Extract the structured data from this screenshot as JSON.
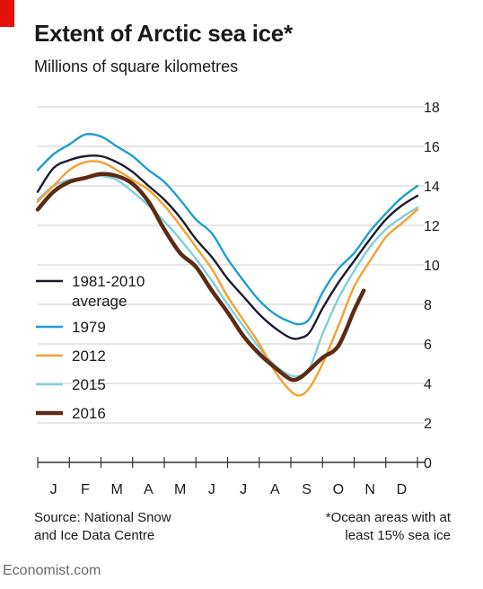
{
  "chart_data": {
    "type": "line",
    "title": "Extent of Arctic sea ice*",
    "subtitle": "Millions of square kilometres",
    "categories": [
      "J",
      "F",
      "M",
      "A",
      "M",
      "J",
      "J",
      "A",
      "S",
      "O",
      "N",
      "D"
    ],
    "ylim": [
      0,
      18
    ],
    "yticks": [
      "0",
      "2",
      "4",
      "6",
      "8",
      "10",
      "12",
      "14",
      "16",
      "18"
    ],
    "grid": true,
    "legend_position": "left",
    "series": [
      {
        "name": "1981-2010 average",
        "label_lines": [
          "1981-2010",
          "average"
        ],
        "color": "#1b1b2e",
        "x": [
          0,
          0.5,
          1,
          1.5,
          2,
          2.5,
          3,
          3.5,
          4,
          4.5,
          5,
          5.5,
          6,
          6.5,
          7,
          7.5,
          8,
          8.3,
          8.6,
          9,
          9.5,
          10,
          10.5,
          11,
          11.5,
          12
        ],
        "y": [
          13.7,
          14.9,
          15.3,
          15.5,
          15.5,
          15.2,
          14.7,
          14.0,
          13.3,
          12.4,
          11.3,
          10.4,
          9.3,
          8.4,
          7.5,
          6.8,
          6.3,
          6.3,
          6.6,
          7.8,
          9.1,
          10.2,
          11.3,
          12.3,
          13.0,
          13.5
        ]
      },
      {
        "name": "1979",
        "label_lines": [
          "1979"
        ],
        "color": "#1f9fd1",
        "x": [
          0,
          0.5,
          1,
          1.5,
          2,
          2.5,
          3,
          3.5,
          4,
          4.5,
          5,
          5.5,
          6,
          6.5,
          7,
          7.5,
          8,
          8.3,
          8.6,
          9,
          9.5,
          10,
          10.5,
          11,
          11.5,
          12
        ],
        "y": [
          14.8,
          15.6,
          16.1,
          16.6,
          16.5,
          16.0,
          15.5,
          14.8,
          14.2,
          13.3,
          12.3,
          11.6,
          10.3,
          9.2,
          8.2,
          7.5,
          7.1,
          7.0,
          7.3,
          8.6,
          9.8,
          10.6,
          11.7,
          12.6,
          13.4,
          14.0
        ]
      },
      {
        "name": "2012",
        "label_lines": [
          "2012"
        ],
        "color": "#f5a031",
        "x": [
          0,
          0.5,
          1,
          1.5,
          2,
          2.5,
          3,
          3.5,
          4,
          4.5,
          5,
          5.5,
          6,
          6.5,
          7,
          7.5,
          8,
          8.3,
          8.6,
          9,
          9.5,
          10,
          10.5,
          11,
          11.5,
          12
        ],
        "y": [
          13.2,
          14.0,
          14.8,
          15.2,
          15.2,
          14.8,
          14.3,
          13.8,
          13.0,
          12.0,
          10.9,
          9.8,
          8.4,
          7.2,
          6.0,
          4.6,
          3.6,
          3.4,
          3.8,
          5.0,
          6.9,
          8.9,
          10.2,
          11.4,
          12.1,
          12.8
        ]
      },
      {
        "name": "2015",
        "label_lines": [
          "2015"
        ],
        "color": "#7fcfd8",
        "x": [
          0,
          0.5,
          1,
          1.5,
          2,
          2.5,
          3,
          3.5,
          4,
          4.5,
          5,
          5.5,
          6,
          6.5,
          7,
          7.5,
          8,
          8.3,
          8.6,
          9,
          9.5,
          10,
          10.5,
          11,
          11.5,
          12
        ],
        "y": [
          13.3,
          14.0,
          14.3,
          14.4,
          14.5,
          14.3,
          13.7,
          13.0,
          12.2,
          11.3,
          10.3,
          9.2,
          8.0,
          6.9,
          5.8,
          4.9,
          4.4,
          4.4,
          4.8,
          6.5,
          8.3,
          9.7,
          10.9,
          11.8,
          12.4,
          12.9
        ]
      },
      {
        "name": "2016",
        "label_lines": [
          "2016"
        ],
        "color": "#5c2b14",
        "x": [
          0,
          0.5,
          1,
          1.5,
          2,
          2.5,
          3,
          3.5,
          4,
          4.5,
          5,
          5.5,
          6,
          6.5,
          7,
          7.5,
          8,
          8.3,
          8.6,
          9,
          9.5,
          10,
          10.3
        ],
        "y": [
          12.8,
          13.7,
          14.2,
          14.4,
          14.6,
          14.5,
          14.1,
          13.2,
          11.8,
          10.6,
          9.9,
          8.7,
          7.6,
          6.4,
          5.5,
          4.8,
          4.2,
          4.3,
          4.7,
          5.3,
          5.9,
          7.7,
          8.7
        ]
      }
    ]
  },
  "source_lines": [
    "Source: National Snow",
    "and Ice Data Centre"
  ],
  "note_lines": [
    "*Ocean areas with at",
    "least 15% sea ice"
  ],
  "brand": "Economist.com",
  "colors": {
    "accent": "#e3120b",
    "grid": "#cccccc",
    "axis": "#333333"
  }
}
